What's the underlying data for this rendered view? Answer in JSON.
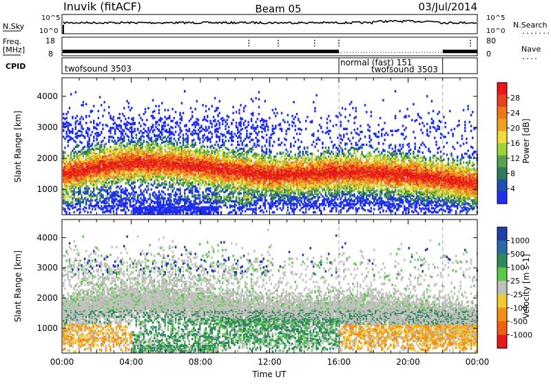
{
  "header": {
    "radar": "Inuvik (fitACF)",
    "beam": "Beam 05",
    "date": "03/Jul/2014"
  },
  "nsky_panel": {
    "left_label": "N.Sky",
    "left_ticks": [
      "10^5",
      "10^0"
    ],
    "right_ticks": [
      "10^5",
      "10^0"
    ],
    "right_label": "N.Search",
    "right_legend": "........"
  },
  "freq_panel": {
    "left_label_line1": "Freq.",
    "left_label_line2": "[MHz]",
    "left_ticks": [
      "18",
      "8"
    ],
    "right_ticks": [
      "80",
      "0"
    ],
    "right_label": "Nave",
    "right_legend": "....",
    "freq_level_mhz": 10.5,
    "nave_level": 15
  },
  "cpid_panel": {
    "label": "CPID",
    "segments": [
      {
        "text": "twofsound 3503",
        "start_hour": 0,
        "end_hour": 16
      },
      {
        "text": "normal (fast) 151",
        "start_hour": 16,
        "end_hour": 22
      },
      {
        "text": "twofsound 3503",
        "start_hour": 16,
        "end_hour": 22
      }
    ],
    "boundaries_hour": [
      16,
      22
    ]
  },
  "chart_data": [
    {
      "type": "heatmap",
      "name": "power",
      "ylabel": "Slant Range [km]",
      "yticks": [
        1000,
        2000,
        3000,
        4000
      ],
      "ylim": [
        180,
        4600
      ],
      "xlim": [
        0,
        24
      ],
      "colorbar": {
        "label": "Power [dB]",
        "ticks": [
          "4",
          "8",
          "12",
          "16",
          "20",
          "24",
          "28"
        ],
        "colors": [
          "#1f2ef0",
          "#1f4fb0",
          "#2f7a5a",
          "#5aa04a",
          "#9cd23a",
          "#f0dc3a",
          "#f0a020",
          "#f07818",
          "#e84020",
          "#e81818"
        ]
      }
    },
    {
      "type": "heatmap",
      "name": "velocity",
      "ylabel": "Slant Range [km]",
      "xlabel": "Time UT",
      "xticks": [
        "00:00",
        "04:00",
        "08:00",
        "12:00",
        "16:00",
        "20:00",
        "00:00"
      ],
      "yticks": [
        1000,
        2000,
        3000,
        4000
      ],
      "ylim": [
        180,
        4600
      ],
      "xlim": [
        0,
        24
      ],
      "colorbar": {
        "label": "Velocity  [m s-1]",
        "ticks": [
          "1000",
          "500",
          "100",
          "25",
          "-25",
          "-100",
          "-500",
          "-1000"
        ],
        "colors": [
          "#1f3ca8",
          "#2a6aa8",
          "#2f8a5a",
          "#5ac84a",
          "#c0c0bc",
          "#f0c830",
          "#f09018",
          "#f06010",
          "#e81818"
        ]
      }
    }
  ]
}
